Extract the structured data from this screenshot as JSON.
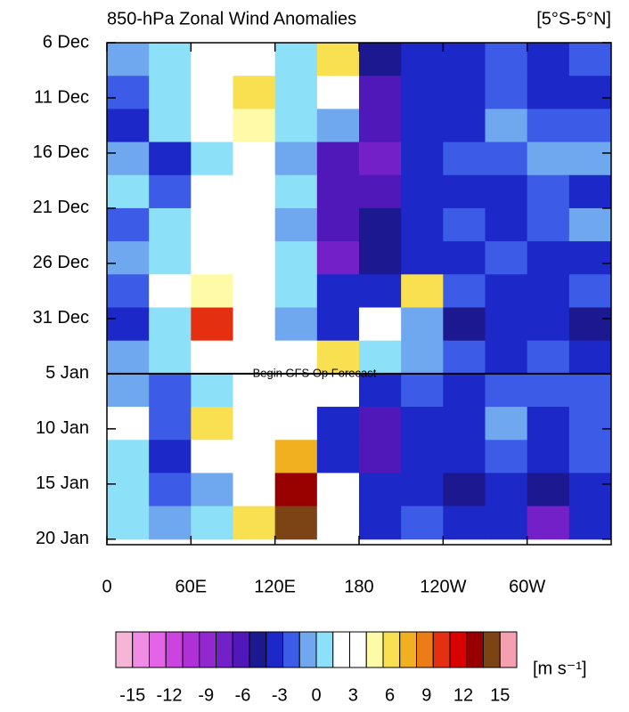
{
  "chart_data": {
    "type": "heatmap",
    "title": "850-hPa Zonal Wind Anomalies",
    "subtitle": "[5°S-5°N]",
    "units": "[m s⁻¹]",
    "annotation": {
      "text": "Begin GFS Op Forecast",
      "y": 30
    },
    "xlim": [
      0,
      360
    ],
    "xticks": [
      0,
      {
        "value": 60,
        "label": "60E"
      },
      {
        "value": 120,
        "label": "120E"
      },
      180,
      {
        "value": 240,
        "label": "120W"
      },
      {
        "value": 300,
        "label": "60W"
      }
    ],
    "ylim": [
      0,
      45.5
    ],
    "yticks": [
      {
        "value": 0,
        "label": "6 Dec"
      },
      {
        "value": 5,
        "label": "11 Dec"
      },
      {
        "value": 10,
        "label": "16 Dec"
      },
      {
        "value": 15,
        "label": "21 Dec"
      },
      {
        "value": 20,
        "label": "26 Dec"
      },
      {
        "value": 25,
        "label": "31 Dec"
      },
      {
        "value": 30,
        "label": "5 Jan"
      },
      {
        "value": 35,
        "label": "10 Jan"
      },
      {
        "value": 40,
        "label": "15 Jan"
      },
      {
        "value": 45,
        "label": "20 Jan"
      }
    ],
    "x": [
      15,
      45,
      75,
      105,
      135,
      165,
      195,
      225,
      255,
      285,
      315,
      345
    ],
    "y": [
      1.5,
      4.5,
      7.5,
      10.5,
      13.5,
      16.5,
      19.5,
      22.5,
      25.5,
      28.5,
      31.5,
      34.5,
      37.5,
      40.5,
      43.5
    ],
    "z": [
      [
        -1,
        1,
        2,
        3,
        1,
        6,
        -5,
        -3,
        -3,
        -2,
        -3,
        -2
      ],
      [
        -2,
        1,
        3,
        6,
        0,
        4,
        -6,
        -4,
        -3,
        -2,
        -3,
        -3
      ],
      [
        -3,
        0,
        2,
        5,
        0,
        -1,
        -6,
        -4,
        -3,
        -1,
        -2,
        -2
      ],
      [
        -1,
        -4,
        1,
        3,
        -1,
        -6,
        -7,
        -3,
        -2,
        -2,
        -1,
        -1
      ],
      [
        0,
        -2,
        2,
        2,
        0,
        -6,
        -6,
        -4,
        -4,
        -3,
        -2,
        -3
      ],
      [
        -2,
        0,
        3,
        2,
        -1,
        -6,
        -5,
        -3,
        -2,
        -4,
        -2,
        -1
      ],
      [
        -1,
        0,
        2,
        4,
        0,
        -7,
        -5,
        -4,
        -3,
        -2,
        -3,
        -3
      ],
      [
        -2,
        2,
        5,
        3,
        0,
        -4,
        -4,
        6,
        -2,
        -4,
        -3,
        -2
      ],
      [
        -3,
        1,
        10,
        4,
        -1,
        -3,
        2,
        -1,
        -5,
        -3,
        -3,
        -5
      ],
      [
        -1,
        1,
        4,
        2,
        2,
        6,
        0,
        -1,
        -2,
        -3,
        -2,
        -3
      ],
      [
        -1,
        -2,
        1,
        2,
        3,
        3,
        -3,
        -2,
        -3,
        -2,
        -2,
        -2
      ],
      [
        2,
        -2,
        6,
        3,
        4,
        -4,
        -6,
        -4,
        -3,
        -1,
        -3,
        -2
      ],
      [
        1,
        -3,
        2,
        2,
        8,
        -4,
        -6,
        -4,
        -4,
        -2,
        -4,
        -2
      ],
      [
        1,
        -2,
        -1,
        3,
        13,
        2,
        -4,
        -3,
        -5,
        -3,
        -5,
        -3
      ],
      [
        1,
        -1,
        0,
        6,
        14,
        4,
        -3,
        -2,
        -4,
        -3,
        -7,
        -3
      ]
    ],
    "colorbar": {
      "clim": [
        -15,
        15
      ],
      "ticks": [
        -15,
        -12,
        -9,
        -6,
        -3,
        0,
        3,
        6,
        9,
        12,
        15
      ],
      "colors": [
        "#f6b4d6",
        "#f08ce4",
        "#e464e8",
        "#cc44e0",
        "#b030d8",
        "#9428d0",
        "#7420c8",
        "#5018b8",
        "#1c1890",
        "#1c28c8",
        "#3c5ce8",
        "#70a8f0",
        "#8ce0f8",
        "#ffffff",
        "#ffffff",
        "#fffaa8",
        "#f8e050",
        "#f0b020",
        "#ec7c18",
        "#e43010",
        "#d80000",
        "#980000",
        "#7c4414",
        "#f4a0b0"
      ]
    }
  }
}
